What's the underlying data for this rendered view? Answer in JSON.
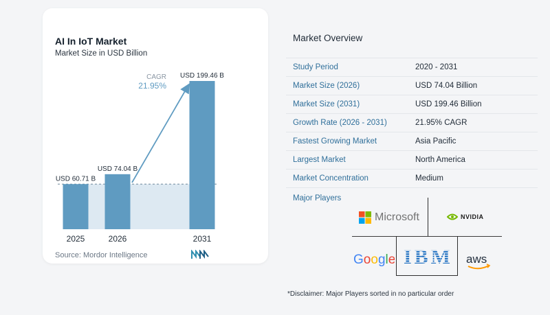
{
  "chart": {
    "title": "AI In IoT Market",
    "subtitle": "Market Size in USD Billion",
    "cagr_label": "CAGR",
    "cagr_value": "21.95%",
    "source": "Source: Mordor Intelligence"
  },
  "chart_data": {
    "type": "bar",
    "categories": [
      "2025",
      "2026",
      "2031"
    ],
    "values": [
      60.71,
      74.04,
      199.46
    ],
    "data_labels": [
      "USD 60.71 B",
      "USD 74.04 B",
      "USD 199.46 B"
    ],
    "title": "AI In IoT Market",
    "subtitle": "Market Size in USD Billion",
    "ylim": [
      0,
      199.46
    ],
    "annotation": "CAGR 21.95%",
    "grid": false,
    "colors": {
      "bar": "#5f9bc1",
      "band": "#dde9f2",
      "arrow": "#5f9bc1"
    }
  },
  "overview": {
    "title": "Market Overview",
    "rows": [
      {
        "label": "Study Period",
        "value": "2020 - 2031"
      },
      {
        "label": "Market Size (2026)",
        "value": "USD 74.04 Billion"
      },
      {
        "label": "Market Size (2031)",
        "value": "USD 199.46 Billion"
      },
      {
        "label": "Growth Rate (2026 - 2031)",
        "value": "21.95% CAGR"
      },
      {
        "label": "Fastest Growing Market",
        "value": "Asia Pacific"
      },
      {
        "label": "Largest Market",
        "value": "North America"
      },
      {
        "label": "Market Concentration",
        "value": "Medium"
      }
    ]
  },
  "players": {
    "title": "Major Players",
    "logos": [
      "Microsoft",
      "NVIDIA",
      "Google",
      "IBM",
      "aws"
    ],
    "disclaimer": "*Disclaimer: Major Players sorted in no particular order"
  },
  "colors": {
    "accent": "#2f6f9a",
    "bar": "#5f9bc1"
  }
}
